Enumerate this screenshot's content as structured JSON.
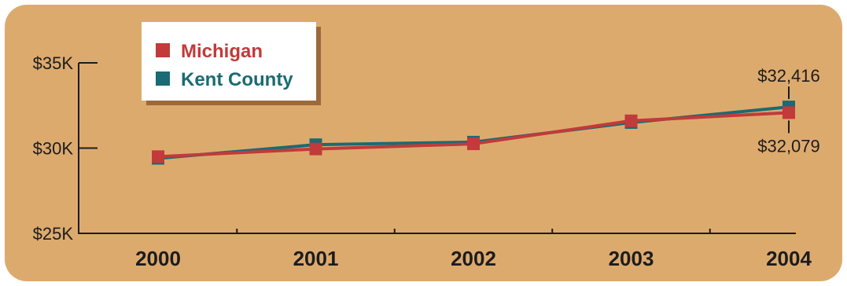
{
  "chart_data": {
    "type": "line",
    "title": "",
    "xlabel": "",
    "ylabel": "",
    "categories": [
      "2000",
      "2001",
      "2002",
      "2003",
      "2004"
    ],
    "ylim": [
      25000,
      35000
    ],
    "y_ticks": [
      25000,
      30000,
      35000
    ],
    "y_tick_labels": [
      "$25K",
      "$30K",
      "$35K"
    ],
    "grid": false,
    "legend_position": "top-left",
    "series": [
      {
        "name": "Michigan",
        "color": "#c23a3a",
        "values": [
          29500,
          29950,
          30250,
          31600,
          32079
        ]
      },
      {
        "name": "Kent County",
        "color": "#1a6b73",
        "values": [
          29400,
          30200,
          30350,
          31500,
          32416
        ]
      }
    ],
    "annotations": [
      {
        "text": "$32,416",
        "series": "Kent County",
        "category": "2004",
        "position": "above"
      },
      {
        "text": "$32,079",
        "series": "Michigan",
        "category": "2004",
        "position": "below"
      }
    ]
  },
  "colors": {
    "background": "#ddaa6e",
    "axis": "#1c1c1c",
    "text": "#1c1c1c",
    "legend_box": "#ffffff",
    "legend_shadow": "#9a6a3a"
  }
}
